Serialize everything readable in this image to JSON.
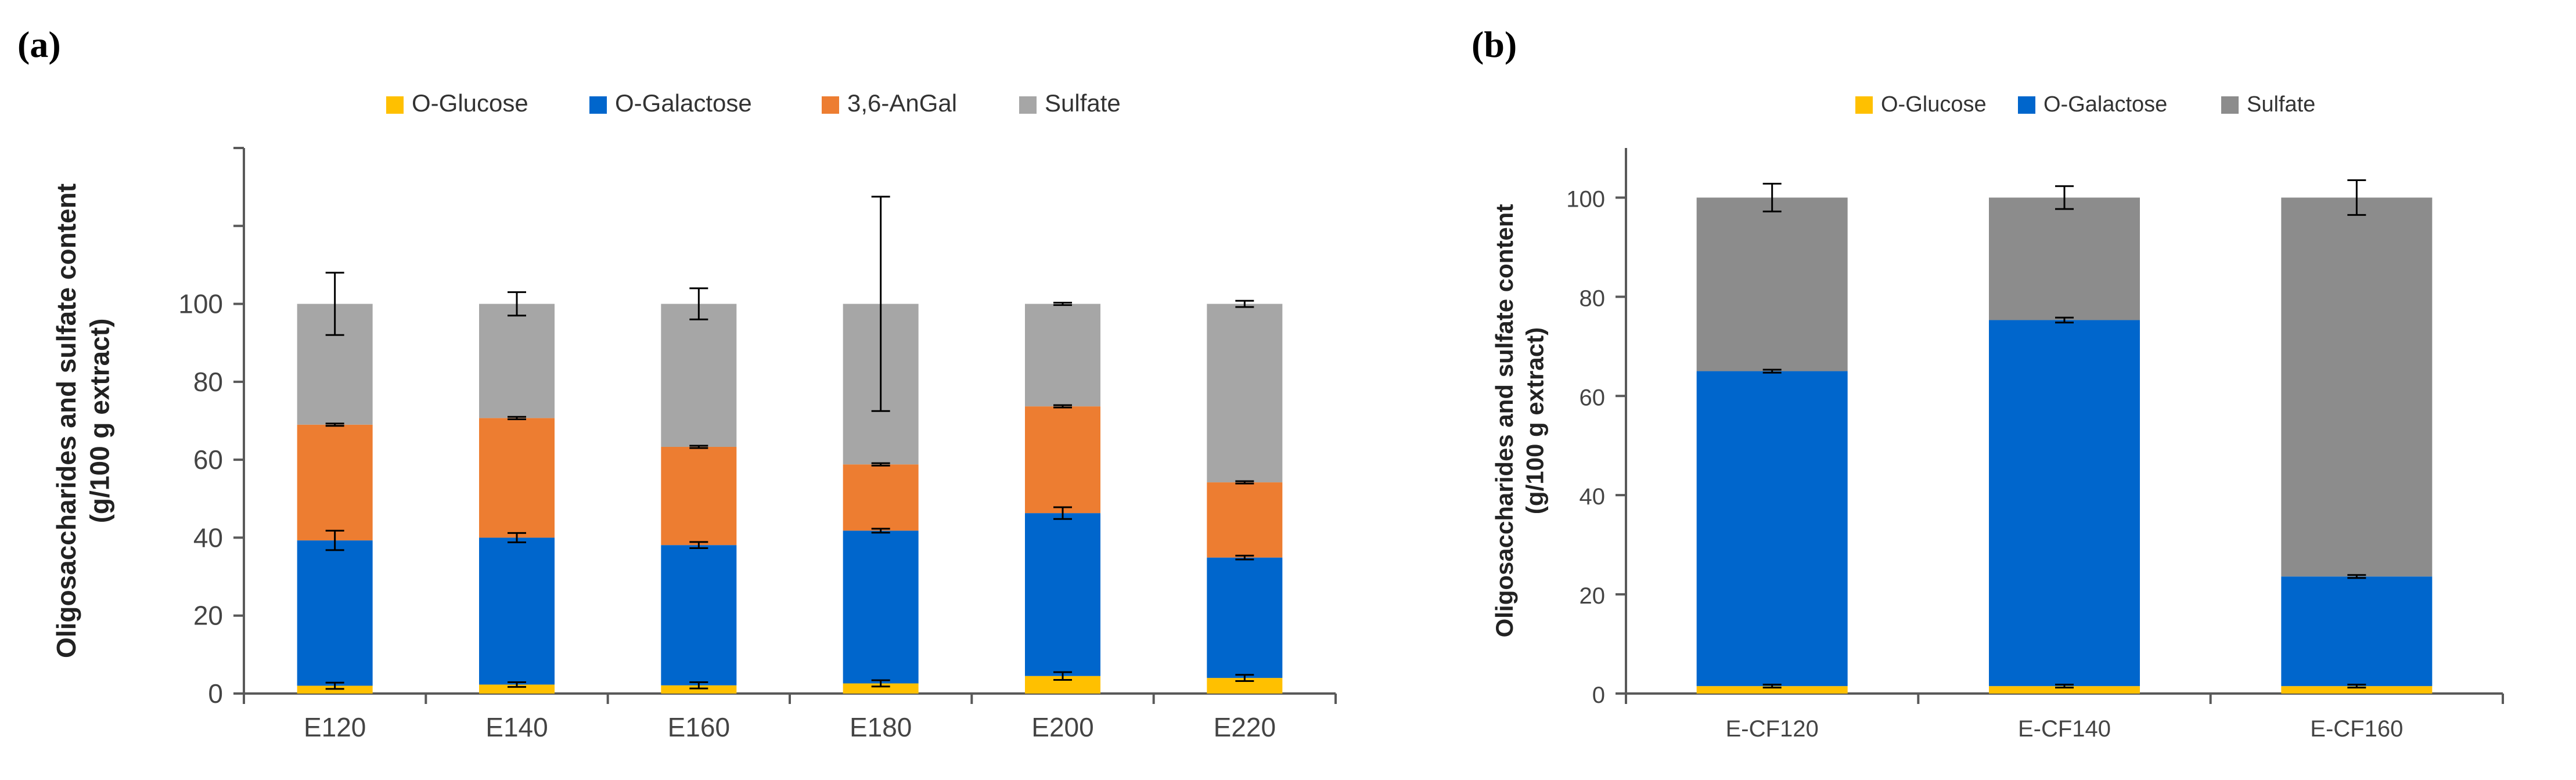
{
  "chart_data": [
    {
      "panel_label": "(a)",
      "type": "bar",
      "stacked": true,
      "categories": [
        "E120",
        "E140",
        "E160",
        "E180",
        "E200",
        "E220"
      ],
      "series": [
        {
          "name": "O-Glucose",
          "color": "#FFC000",
          "values": [
            2,
            2.3,
            2.1,
            2.6,
            4.5,
            4.0
          ],
          "errors": [
            0.8,
            0.6,
            0.8,
            0.8,
            1.0,
            0.8
          ]
        },
        {
          "name": "O-Galactose",
          "color": "#0066CC",
          "values": [
            37.3,
            37.7,
            36.0,
            39.2,
            41.8,
            30.9
          ],
          "errors": [
            2.5,
            1.2,
            0.8,
            0.5,
            1.5,
            0.5
          ]
        },
        {
          "name": "3,6-AnGal",
          "color": "#ED7D31",
          "values": [
            29.7,
            30.7,
            25.2,
            17.0,
            27.4,
            19.3
          ],
          "errors": [
            0.3,
            0.3,
            0.3,
            0.3,
            0.3,
            0.3
          ]
        },
        {
          "name": "Sulfate",
          "color": "#A6A6A6",
          "values": [
            31,
            29.3,
            36.7,
            41.2,
            26.3,
            45.8
          ],
          "errors": [
            8,
            3,
            4,
            27.5,
            0.3,
            0.8
          ]
        }
      ],
      "ylabel_line1": "Oligosaccharides and sulfate content",
      "ylabel_line2": "(g/100 g extract)",
      "ylim": [
        0,
        140
      ],
      "yticks": [
        "0",
        "20",
        "40",
        "60",
        "80",
        "100"
      ],
      "grid": false,
      "legend_position": "top"
    },
    {
      "panel_label": "(b)",
      "type": "bar",
      "stacked": true,
      "categories": [
        "E-CF120",
        "E-CF140",
        "E-CF160"
      ],
      "series": [
        {
          "name": "O-Glucose",
          "color": "#FFC000",
          "values": [
            1.5,
            1.5,
            1.5
          ],
          "errors": [
            0.3,
            0.3,
            0.3
          ]
        },
        {
          "name": "O-Galactose",
          "color": "#0066CC",
          "values": [
            63.5,
            73.8,
            22.1
          ],
          "errors": [
            0.3,
            0.5,
            0.3
          ]
        },
        {
          "name": "Sulfate",
          "color": "#8C8C8C",
          "values": [
            35,
            24.7,
            76.4
          ],
          "errors": [
            2.8,
            2.3,
            3.5
          ]
        }
      ],
      "ylabel_line1": "Oligosaccharides and sulfate content",
      "ylabel_line2": "(g/100 g extract)",
      "ylim": [
        0,
        110
      ],
      "yticks": [
        "0",
        "20",
        "40",
        "60",
        "80",
        "100"
      ],
      "grid": false,
      "legend_position": "top"
    }
  ]
}
